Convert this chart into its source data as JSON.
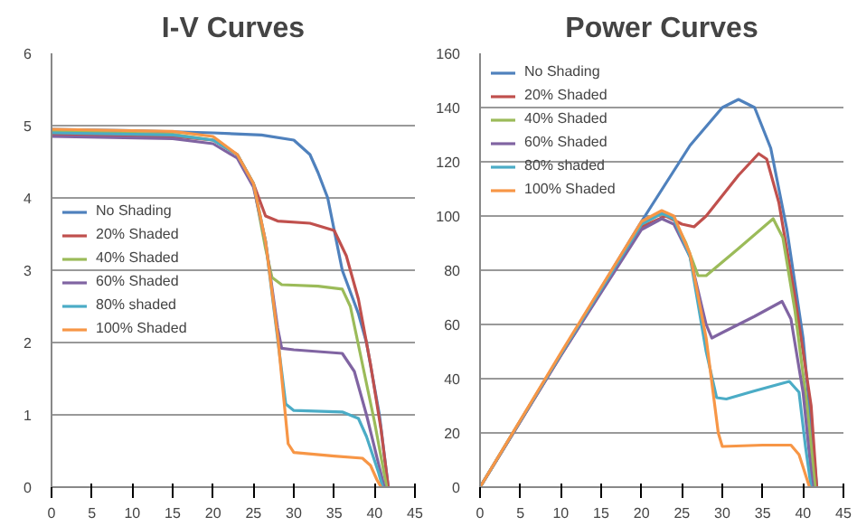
{
  "chart_data": [
    {
      "type": "line",
      "title": "I-V Curves",
      "xlim": [
        0,
        45
      ],
      "xticks": [
        0,
        5,
        10,
        15,
        20,
        25,
        30,
        35,
        40,
        45
      ],
      "ylim": [
        0,
        6
      ],
      "yticks": [
        0,
        1,
        2,
        3,
        4,
        5,
        6
      ],
      "grid": "y",
      "legend": "left",
      "series": [
        {
          "name": "No Shading",
          "color": "#4f81bd",
          "x": [
            0,
            10,
            20,
            26,
            30,
            32,
            33,
            34.2,
            36,
            38,
            39,
            40.6,
            41.7
          ],
          "values": [
            4.95,
            4.93,
            4.9,
            4.87,
            4.8,
            4.6,
            4.35,
            4.0,
            3.0,
            2.4,
            2.0,
            1.0,
            0
          ]
        },
        {
          "name": "20% Shaded",
          "color": "#c0504d",
          "x": [
            0,
            15,
            20,
            23,
            25,
            26.5,
            28,
            32,
            35,
            36.5,
            38,
            39.5,
            40.8,
            41.7
          ],
          "values": [
            4.88,
            4.85,
            4.8,
            4.6,
            4.2,
            3.75,
            3.68,
            3.65,
            3.55,
            3.2,
            2.6,
            1.7,
            0.8,
            0
          ]
        },
        {
          "name": "40% Shaded",
          "color": "#9bbb59",
          "x": [
            0,
            15,
            20,
            23,
            25,
            26.5,
            27.3,
            28.5,
            33,
            36,
            37,
            38.5,
            40,
            41.5
          ],
          "values": [
            4.92,
            4.88,
            4.8,
            4.6,
            4.2,
            3.3,
            2.9,
            2.8,
            2.78,
            2.74,
            2.5,
            1.7,
            0.9,
            0
          ]
        },
        {
          "name": "60% Shaded",
          "color": "#8064a2",
          "x": [
            0,
            15,
            20,
            23,
            25,
            26.5,
            28,
            28.5,
            30,
            36,
            37.5,
            39,
            41.2
          ],
          "values": [
            4.85,
            4.82,
            4.75,
            4.55,
            4.15,
            3.4,
            2.2,
            1.92,
            1.9,
            1.85,
            1.6,
            1.0,
            0
          ]
        },
        {
          "name": "80% shaded",
          "color": "#4bacc6",
          "x": [
            0,
            15,
            20,
            23,
            25,
            26.5,
            29,
            30,
            36,
            38,
            39,
            40.5,
            41
          ],
          "values": [
            4.9,
            4.87,
            4.8,
            4.6,
            4.2,
            3.4,
            1.15,
            1.06,
            1.04,
            0.95,
            0.7,
            0.2,
            0
          ]
        },
        {
          "name": "100% Shaded",
          "color": "#f79646",
          "x": [
            0,
            15,
            20,
            23,
            25,
            26.5,
            28,
            29.3,
            30,
            35,
            38.5,
            39.5,
            40.3,
            40.8
          ],
          "values": [
            4.95,
            4.92,
            4.85,
            4.6,
            4.2,
            3.4,
            2.1,
            0.6,
            0.48,
            0.43,
            0.4,
            0.3,
            0.1,
            0
          ]
        }
      ]
    },
    {
      "type": "line",
      "title": "Power Curves",
      "xlim": [
        0,
        45
      ],
      "xticks": [
        0,
        5,
        10,
        15,
        20,
        25,
        30,
        35,
        40,
        45
      ],
      "ylim": [
        0,
        160
      ],
      "yticks": [
        0,
        20,
        40,
        60,
        80,
        100,
        120,
        140,
        160
      ],
      "grid": "y",
      "legend": "top left",
      "series": [
        {
          "name": "No Shading",
          "color": "#4f81bd",
          "x": [
            0,
            10,
            20,
            26,
            30,
            32,
            34,
            36,
            38,
            40,
            41.7
          ],
          "values": [
            0,
            49,
            98,
            126,
            140,
            143,
            140,
            125,
            95,
            55,
            0
          ]
        },
        {
          "name": "20% Shaded",
          "color": "#c0504d",
          "x": [
            0,
            10,
            20,
            23,
            25,
            26.5,
            28,
            32,
            34.5,
            35.5,
            37,
            39,
            41,
            41.7
          ],
          "values": [
            0,
            48.5,
            96,
            100,
            97,
            96,
            100,
            115,
            123,
            121,
            105,
            70,
            30,
            0
          ]
        },
        {
          "name": "40% Shaded",
          "color": "#9bbb59",
          "x": [
            0,
            10,
            20,
            22.5,
            24,
            25.5,
            27,
            28,
            32,
            36.3,
            37.5,
            39,
            40.5,
            41.5
          ],
          "values": [
            0,
            49,
            97,
            101,
            99,
            90,
            78,
            78,
            88,
            99,
            92,
            65,
            30,
            0
          ]
        },
        {
          "name": "60% Shaded",
          "color": "#8064a2",
          "x": [
            0,
            10,
            20,
            22.5,
            24,
            26,
            28,
            28.7,
            30,
            34,
            37.4,
            38.5,
            40,
            41.2
          ],
          "values": [
            0,
            48.5,
            95,
            99,
            97,
            85,
            60,
            55,
            57,
            63,
            68.5,
            62,
            35,
            0
          ]
        },
        {
          "name": "80% shaded",
          "color": "#4bacc6",
          "x": [
            0,
            10,
            20,
            22.5,
            24,
            26,
            28,
            29.3,
            30.5,
            34,
            38.3,
            39.5,
            40.3,
            41
          ],
          "values": [
            0,
            49,
            97,
            101,
            99,
            85,
            50,
            33,
            32.5,
            35.5,
            39,
            35,
            15,
            0
          ]
        },
        {
          "name": "100% Shaded",
          "color": "#f79646",
          "x": [
            0,
            10,
            20,
            22.5,
            24,
            26,
            28,
            29.5,
            30,
            35,
            38.5,
            39.5,
            40.8
          ],
          "values": [
            0,
            49.5,
            98,
            102,
            100,
            86,
            55,
            20,
            15,
            15.5,
            15.5,
            12,
            0
          ]
        }
      ]
    }
  ]
}
